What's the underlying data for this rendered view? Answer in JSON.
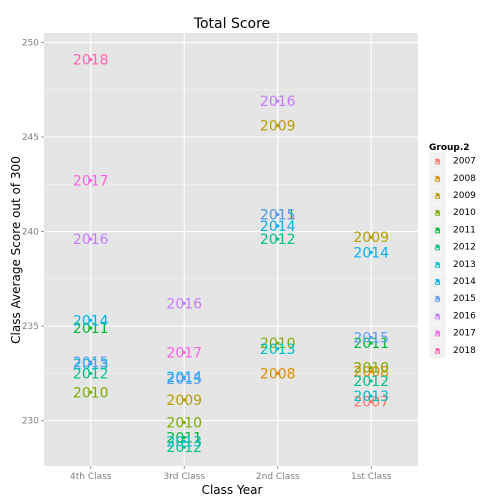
{
  "chart_data": {
    "type": "scatter",
    "title": "Total Score",
    "xlabel": "Class Year",
    "ylabel": "Class Average Score out of 300",
    "categories": [
      "4th Class",
      "3rd Class",
      "2nd Class",
      "1st Class"
    ],
    "ylim": [
      227.6,
      250.5
    ],
    "yticks": [
      230,
      235,
      240,
      245,
      250
    ],
    "grid": true,
    "legend": {
      "title": "Group.2",
      "position": "right"
    },
    "marker_style": "point-with-year-text-label",
    "series": [
      {
        "name": "2007",
        "color": "#F8766D",
        "points": [
          {
            "x": "1st Class",
            "y": 231.0
          }
        ]
      },
      {
        "name": "2008",
        "color": "#DE8C00",
        "points": [
          {
            "x": "2nd Class",
            "y": 232.5
          },
          {
            "x": "1st Class",
            "y": 232.6
          }
        ]
      },
      {
        "name": "2009",
        "color": "#B79F00",
        "points": [
          {
            "x": "3rd Class",
            "y": 231.1
          },
          {
            "x": "2nd Class",
            "y": 245.6
          },
          {
            "x": "1st Class",
            "y": 239.7
          }
        ]
      },
      {
        "name": "2010",
        "color": "#7CAE00",
        "points": [
          {
            "x": "4th Class",
            "y": 231.5
          },
          {
            "x": "3rd Class",
            "y": 229.9
          },
          {
            "x": "2nd Class",
            "y": 234.1
          },
          {
            "x": "1st Class",
            "y": 232.8
          }
        ]
      },
      {
        "name": "2011",
        "color": "#00BA38",
        "points": [
          {
            "x": "4th Class",
            "y": 234.9
          },
          {
            "x": "3rd Class",
            "y": 229.1
          },
          {
            "x": "2nd Class",
            "y": 240.9
          },
          {
            "x": "1st Class",
            "y": 234.1
          }
        ]
      },
      {
        "name": "2012",
        "color": "#00C08B",
        "points": [
          {
            "x": "4th Class",
            "y": 232.5
          },
          {
            "x": "3rd Class",
            "y": 228.6
          },
          {
            "x": "2nd Class",
            "y": 239.6
          },
          {
            "x": "1st Class",
            "y": 232.1
          }
        ]
      },
      {
        "name": "2013",
        "color": "#00BFC4",
        "points": [
          {
            "x": "4th Class",
            "y": 233.0
          },
          {
            "x": "3rd Class",
            "y": 228.9
          },
          {
            "x": "2nd Class",
            "y": 233.8
          },
          {
            "x": "1st Class",
            "y": 231.3
          }
        ]
      },
      {
        "name": "2014",
        "color": "#00B4F0",
        "points": [
          {
            "x": "4th Class",
            "y": 235.3
          },
          {
            "x": "3rd Class",
            "y": 232.3
          },
          {
            "x": "2nd Class",
            "y": 240.3
          },
          {
            "x": "1st Class",
            "y": 238.9
          }
        ]
      },
      {
        "name": "2015",
        "color": "#619CFF",
        "points": [
          {
            "x": "4th Class",
            "y": 233.1
          },
          {
            "x": "3rd Class",
            "y": 232.2
          },
          {
            "x": "2nd Class",
            "y": 240.9
          },
          {
            "x": "1st Class",
            "y": 234.4
          }
        ]
      },
      {
        "name": "2016",
        "color": "#C77CFF",
        "points": [
          {
            "x": "4th Class",
            "y": 239.6
          },
          {
            "x": "3rd Class",
            "y": 236.2
          },
          {
            "x": "2nd Class",
            "y": 246.9
          }
        ]
      },
      {
        "name": "2017",
        "color": "#F564E3",
        "points": [
          {
            "x": "4th Class",
            "y": 242.7
          },
          {
            "x": "3rd Class",
            "y": 233.6
          }
        ]
      },
      {
        "name": "2018",
        "color": "#FF64B0",
        "points": [
          {
            "x": "4th Class",
            "y": 249.1
          }
        ]
      }
    ]
  }
}
